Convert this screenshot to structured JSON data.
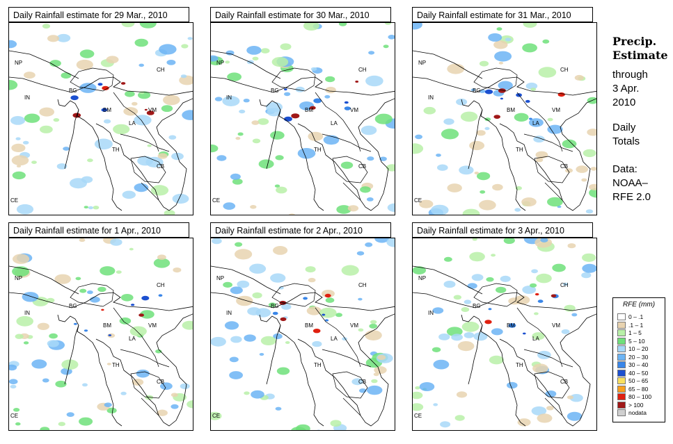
{
  "panels": [
    {
      "title": "Daily Rainfall estimate for  29 Mar., 2010"
    },
    {
      "title": "Daily Rainfall estimate for  30 Mar., 2010"
    },
    {
      "title": "Daily Rainfall estimate for  31 Mar., 2010"
    },
    {
      "title": "Daily Rainfall estimate for  1 Apr., 2010"
    },
    {
      "title": "Daily Rainfall estimate for  2 Apr., 2010"
    },
    {
      "title": "Daily Rainfall estimate for  3 Apr., 2010"
    }
  ],
  "map_labels": [
    "NP",
    "CH",
    "IN",
    "BG",
    "BM",
    "VM",
    "LA",
    "TH",
    "CB",
    "CE"
  ],
  "side": {
    "heading1": "Precip.",
    "heading2": "Estimate",
    "through": "through",
    "date1": "3 Apr.",
    "date2": "2010",
    "daily": "Daily",
    "totals": "Totals",
    "data1": "Data:",
    "data2": "NOAA–",
    "data3": "RFE 2.0"
  },
  "legend": {
    "title": "RFE (mm)",
    "items": [
      {
        "label": "0 – .1",
        "color": "#ffffff"
      },
      {
        "label": ".1 – 1",
        "color": "#e8d3b0"
      },
      {
        "label": "1 – 5",
        "color": "#b8f0a8"
      },
      {
        "label": "5 – 10",
        "color": "#6fe07a"
      },
      {
        "label": "10 – 20",
        "color": "#a8d8f8"
      },
      {
        "label": "20 – 30",
        "color": "#6cb4f4"
      },
      {
        "label": "30 – 40",
        "color": "#3a86e8"
      },
      {
        "label": "40 – 50",
        "color": "#1c50d0"
      },
      {
        "label": "50 – 65",
        "color": "#f8e060"
      },
      {
        "label": "65 – 80",
        "color": "#f8a020"
      },
      {
        "label": "80 – 100",
        "color": "#e02010"
      },
      {
        "label": "> 100",
        "color": "#a01818"
      },
      {
        "label": "nodata",
        "color": "#d0d0d0"
      }
    ]
  }
}
